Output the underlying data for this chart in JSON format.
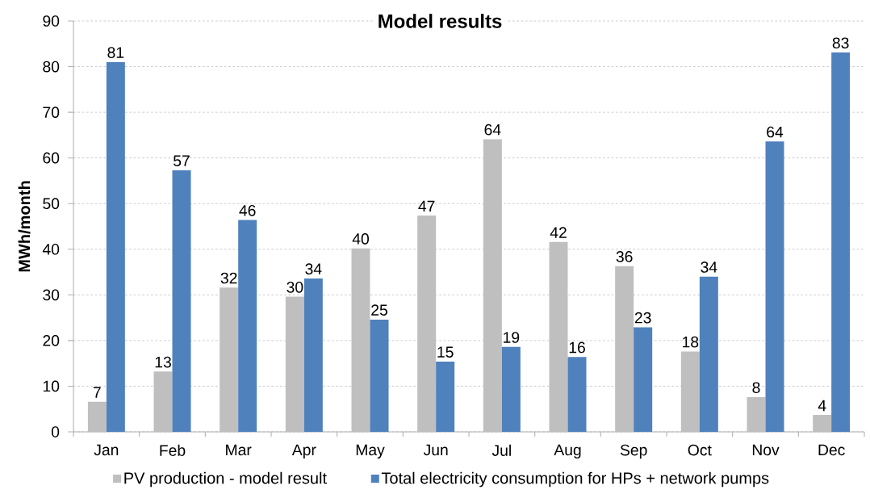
{
  "chart_data": {
    "type": "bar",
    "title": "Model results",
    "ylabel": "MWh/month",
    "categories": [
      "Jan",
      "Feb",
      "Mar",
      "Apr",
      "May",
      "Jun",
      "Jul",
      "Aug",
      "Sep",
      "Oct",
      "Nov",
      "Dec"
    ],
    "series": [
      {
        "name": "PV production - model result",
        "color": "#bfbfbf",
        "values": [
          6.6,
          13.2,
          31.6,
          29.6,
          40.2,
          47.4,
          64.1,
          41.6,
          36.3,
          17.6,
          7.6,
          3.7
        ],
        "value_labels": [
          "7",
          "13",
          "32",
          "30",
          "40",
          "47",
          "64",
          "42",
          "36",
          "18",
          "8",
          "4"
        ]
      },
      {
        "name": "Total electricity consumption for HPs + network pumps",
        "color": "#4f81bd",
        "values": [
          81.0,
          57.3,
          46.4,
          33.6,
          24.6,
          15.4,
          18.6,
          16.4,
          22.9,
          34.0,
          63.6,
          83.1
        ],
        "value_labels": [
          "81",
          "57",
          "46",
          "34",
          "25",
          "15",
          "19",
          "16",
          "23",
          "34",
          "64",
          "83"
        ]
      }
    ],
    "ylim": [
      0,
      90
    ],
    "yticks": [
      0,
      10,
      20,
      30,
      40,
      50,
      60,
      70,
      80,
      90
    ],
    "grid": "y",
    "legend": "bottom"
  }
}
